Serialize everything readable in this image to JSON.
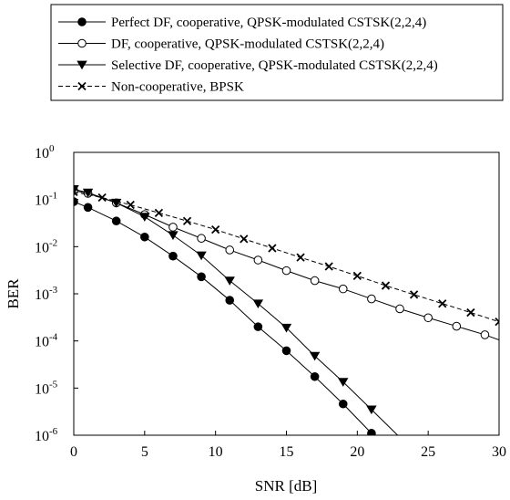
{
  "chart_data": {
    "type": "line",
    "title": "",
    "xlabel": "SNR [dB]",
    "ylabel": "BER",
    "xlim": [
      0,
      30
    ],
    "ylim": [
      1e-06,
      1
    ],
    "yscale": "log",
    "grid": false,
    "legend_position": "top",
    "x_ticks": [
      "0",
      "5",
      "10",
      "15",
      "20",
      "25",
      "30"
    ],
    "y_ticks": [
      {
        "base": "10",
        "exp": "0"
      },
      {
        "base": "10",
        "exp": "-1"
      },
      {
        "base": "10",
        "exp": "-2"
      },
      {
        "base": "10",
        "exp": "-3"
      },
      {
        "base": "10",
        "exp": "-4"
      },
      {
        "base": "10",
        "exp": "-5"
      },
      {
        "base": "10",
        "exp": "-6"
      }
    ],
    "series": [
      {
        "name": "Perfect DF, cooperative, QPSK-modulated CSTSK(2,2,4)",
        "marker": "filled-circle",
        "line": "solid",
        "x": [
          0,
          1,
          3,
          5,
          7,
          9,
          11,
          13,
          15,
          17,
          19,
          21,
          23
        ],
        "y": [
          0.09,
          0.068,
          0.035,
          0.016,
          0.0063,
          0.0023,
          0.00073,
          0.0002,
          6.2e-05,
          1.75e-05,
          4.6e-06,
          1.1e-06,
          2.3e-07
        ],
        "marked_points": 12
      },
      {
        "name": "DF, cooperative, QPSK-modulated CSTSK(2,2,4)",
        "marker": "open-circle",
        "line": "solid",
        "x": [
          0,
          1,
          3,
          5,
          7,
          9,
          11,
          13,
          15,
          17,
          19,
          21,
          23,
          25,
          27,
          29,
          30
        ],
        "y": [
          0.155,
          0.135,
          0.085,
          0.048,
          0.026,
          0.015,
          0.0085,
          0.0052,
          0.0031,
          0.0019,
          0.00127,
          0.00078,
          0.00048,
          0.00031,
          0.000205,
          0.000135,
          0.000105
        ],
        "marked_points": 16
      },
      {
        "name": "Selective DF, cooperative, QPSK-modulated CSTSK(2,2,4)",
        "marker": "filled-triangle-down",
        "line": "solid",
        "x": [
          0,
          1,
          3,
          5,
          7,
          9,
          11,
          13,
          15,
          17,
          19,
          21,
          23
        ],
        "y": [
          0.165,
          0.14,
          0.085,
          0.043,
          0.0175,
          0.0065,
          0.0019,
          0.00062,
          0.00019,
          4.8e-05,
          1.35e-05,
          3.5e-06,
          9e-07
        ],
        "marked_points": 12
      },
      {
        "name": "Non-cooperative, BPSK",
        "marker": "x",
        "line": "dashed",
        "x": [
          0,
          2,
          4,
          6,
          8,
          10,
          12,
          14,
          16,
          18,
          20,
          22,
          24,
          26,
          28,
          30
        ],
        "y": [
          0.145,
          0.11,
          0.077,
          0.052,
          0.035,
          0.023,
          0.0146,
          0.0093,
          0.0059,
          0.0038,
          0.0024,
          0.00149,
          0.00096,
          0.00062,
          0.0004,
          0.000255
        ],
        "marked_points": 16
      }
    ]
  }
}
